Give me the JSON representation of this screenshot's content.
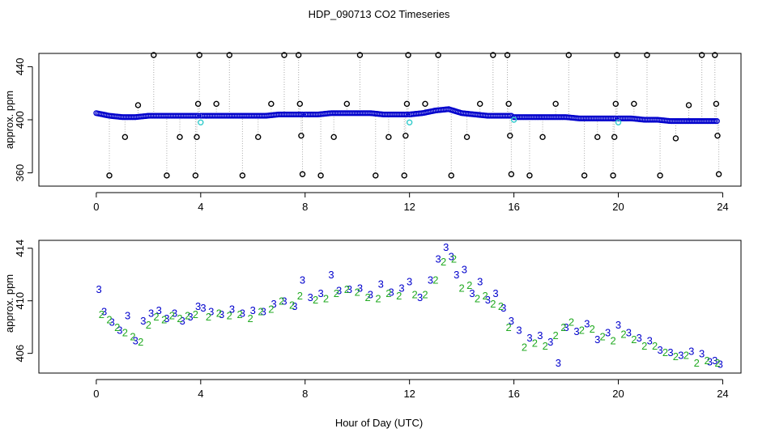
{
  "title": "HDP_090713  CO2 Timeseries",
  "xlabel": "Hour of Day (UTC)",
  "chart_data": [
    {
      "type": "scatter",
      "ylabel": "approx. ppm",
      "xlim": [
        -2.2,
        24.7
      ],
      "ylim": [
        350,
        450
      ],
      "xticks": [
        "0",
        "4",
        "8",
        "12",
        "16",
        "20",
        "24"
      ],
      "yticks": [
        "360",
        "400",
        "440"
      ],
      "baseline": {
        "name": "main",
        "color": "#0000cc",
        "segments": [
          {
            "x": [
              0.0,
              0.5,
              1.0,
              1.5,
              2.0,
              2.5,
              3.0,
              3.5,
              3.9
            ],
            "y": [
              405,
              403,
              402,
              402,
              403,
              403,
              403,
              403,
              403
            ]
          },
          {
            "x": [
              4.0,
              4.5,
              5.0,
              5.5,
              6.0,
              6.5,
              7.0,
              7.5,
              7.9
            ],
            "y": [
              403,
              403,
              403,
              403,
              403,
              403,
              404,
              404,
              404
            ]
          },
          {
            "x": [
              8.0,
              8.5,
              9.0,
              9.5,
              10.0,
              10.5,
              11.0,
              11.5,
              11.9
            ],
            "y": [
              404,
              404,
              405,
              405,
              405,
              405,
              404,
              404,
              404
            ]
          },
          {
            "x": [
              12.0,
              12.5,
              13.0,
              13.5,
              14.0,
              14.5,
              15.0,
              15.5,
              15.9
            ],
            "y": [
              404,
              405,
              407,
              408,
              405,
              404,
              403,
              403,
              403
            ]
          },
          {
            "x": [
              16.0,
              16.5,
              17.0,
              17.5,
              18.0,
              18.5,
              19.0,
              19.5,
              19.9
            ],
            "y": [
              402,
              402,
              402,
              402,
              402,
              401,
              401,
              401,
              401
            ]
          },
          {
            "x": [
              20.0,
              20.5,
              21.0,
              21.5,
              22.0,
              22.5,
              23.0,
              23.5,
              23.8
            ],
            "y": [
              401,
              401,
              400,
              400,
              399,
              399,
              399,
              399,
              399
            ]
          }
        ]
      },
      "cal_points": {
        "name": "calibration",
        "color": "#33cccc",
        "x": [
          4.0,
          12.0,
          16.0,
          20.0
        ],
        "y": [
          398,
          398,
          400,
          398
        ]
      },
      "spikes": {
        "color": "#000000",
        "points": [
          {
            "x": 0.5,
            "y": 358
          },
          {
            "x": 1.1,
            "y": 387
          },
          {
            "x": 1.6,
            "y": 411
          },
          {
            "x": 2.2,
            "y": 463
          },
          {
            "x": 2.7,
            "y": 358
          },
          {
            "x": 3.2,
            "y": 387
          },
          {
            "x": 3.8,
            "y": 358
          },
          {
            "x": 3.85,
            "y": 387
          },
          {
            "x": 3.9,
            "y": 412
          },
          {
            "x": 3.95,
            "y": 464
          },
          {
            "x": 4.6,
            "y": 412
          },
          {
            "x": 5.1,
            "y": 463
          },
          {
            "x": 5.6,
            "y": 358
          },
          {
            "x": 6.2,
            "y": 387
          },
          {
            "x": 6.7,
            "y": 412
          },
          {
            "x": 7.2,
            "y": 463
          },
          {
            "x": 7.75,
            "y": 463
          },
          {
            "x": 7.8,
            "y": 412
          },
          {
            "x": 7.85,
            "y": 388
          },
          {
            "x": 7.9,
            "y": 359
          },
          {
            "x": 8.6,
            "y": 358
          },
          {
            "x": 9.1,
            "y": 387
          },
          {
            "x": 9.6,
            "y": 412
          },
          {
            "x": 10.1,
            "y": 463
          },
          {
            "x": 10.7,
            "y": 358
          },
          {
            "x": 11.2,
            "y": 387
          },
          {
            "x": 11.8,
            "y": 358
          },
          {
            "x": 11.85,
            "y": 388
          },
          {
            "x": 11.9,
            "y": 412
          },
          {
            "x": 11.95,
            "y": 464
          },
          {
            "x": 12.6,
            "y": 412
          },
          {
            "x": 13.1,
            "y": 463
          },
          {
            "x": 13.6,
            "y": 358
          },
          {
            "x": 14.2,
            "y": 387
          },
          {
            "x": 14.7,
            "y": 412
          },
          {
            "x": 15.2,
            "y": 463
          },
          {
            "x": 15.75,
            "y": 463
          },
          {
            "x": 15.8,
            "y": 412
          },
          {
            "x": 15.85,
            "y": 388
          },
          {
            "x": 15.9,
            "y": 359
          },
          {
            "x": 16.6,
            "y": 358
          },
          {
            "x": 17.1,
            "y": 387
          },
          {
            "x": 17.6,
            "y": 412
          },
          {
            "x": 18.1,
            "y": 463
          },
          {
            "x": 18.7,
            "y": 358
          },
          {
            "x": 19.2,
            "y": 387
          },
          {
            "x": 19.8,
            "y": 358
          },
          {
            "x": 19.85,
            "y": 387
          },
          {
            "x": 19.9,
            "y": 412
          },
          {
            "x": 19.95,
            "y": 464
          },
          {
            "x": 20.6,
            "y": 412
          },
          {
            "x": 21.1,
            "y": 463
          },
          {
            "x": 21.6,
            "y": 358
          },
          {
            "x": 22.2,
            "y": 386
          },
          {
            "x": 22.7,
            "y": 411
          },
          {
            "x": 23.2,
            "y": 463
          },
          {
            "x": 23.7,
            "y": 462
          },
          {
            "x": 23.75,
            "y": 412
          },
          {
            "x": 23.8,
            "y": 388
          },
          {
            "x": 23.85,
            "y": 359
          }
        ]
      }
    },
    {
      "type": "scatter",
      "ylabel": "approx. ppm",
      "xlim": [
        -2.2,
        24.7
      ],
      "ylim": [
        404.5,
        414.6
      ],
      "xticks": [
        "0",
        "4",
        "8",
        "12",
        "16",
        "20",
        "24"
      ],
      "yticks": [
        "406",
        "410",
        "414"
      ],
      "series": [
        {
          "name": "3",
          "color": "#0000cc",
          "x": [
            0.1,
            0.3,
            0.6,
            0.9,
            1.2,
            1.5,
            1.8,
            2.1,
            2.4,
            2.7,
            3.0,
            3.3,
            3.6,
            3.9,
            4.1,
            4.4,
            4.8,
            5.2,
            5.6,
            6.0,
            6.4,
            6.8,
            7.2,
            7.6,
            7.9,
            8.2,
            8.6,
            9.0,
            9.3,
            9.7,
            10.1,
            10.5,
            10.9,
            11.3,
            11.7,
            12.0,
            12.4,
            12.8,
            13.1,
            13.4,
            13.6,
            13.8,
            14.1,
            14.4,
            14.7,
            15.0,
            15.3,
            15.6,
            15.9,
            16.2,
            16.6,
            17.0,
            17.4,
            17.7,
            18.0,
            18.4,
            18.8,
            19.2,
            19.6,
            20.0,
            20.4,
            20.8,
            21.2,
            21.6,
            22.0,
            22.4,
            22.8,
            23.2,
            23.5,
            23.7,
            23.9
          ],
          "y": [
            410.9,
            409.2,
            408.4,
            407.8,
            408.9,
            407.0,
            408.5,
            409.1,
            409.3,
            408.7,
            409.1,
            408.5,
            408.8,
            409.6,
            409.5,
            409.2,
            409.0,
            409.4,
            409.1,
            409.3,
            409.2,
            409.8,
            410.0,
            409.6,
            411.6,
            410.3,
            410.6,
            412.0,
            410.8,
            410.9,
            411.0,
            410.5,
            411.3,
            410.7,
            411.0,
            411.5,
            410.3,
            411.6,
            413.2,
            414.1,
            413.4,
            412.0,
            412.4,
            410.6,
            411.5,
            410.1,
            410.6,
            409.5,
            408.5,
            407.8,
            407.2,
            407.4,
            406.9,
            405.3,
            408.0,
            407.7,
            408.3,
            407.1,
            407.6,
            408.2,
            407.6,
            407.2,
            407.0,
            406.3,
            406.1,
            405.9,
            406.2,
            406.0,
            405.4,
            405.5,
            405.2
          ]
        },
        {
          "name": "2",
          "color": "#22aa22",
          "x": [
            0.2,
            0.5,
            0.8,
            1.1,
            1.4,
            1.7,
            2.0,
            2.3,
            2.6,
            2.9,
            3.2,
            3.5,
            3.8,
            4.3,
            4.7,
            5.1,
            5.5,
            5.9,
            6.3,
            6.7,
            7.1,
            7.5,
            7.8,
            8.4,
            8.8,
            9.2,
            9.6,
            10.0,
            10.4,
            10.8,
            11.2,
            11.6,
            12.2,
            12.6,
            13.0,
            13.3,
            13.7,
            14.0,
            14.3,
            14.6,
            14.9,
            15.2,
            15.5,
            15.8,
            16.4,
            16.8,
            17.2,
            17.6,
            17.9,
            18.2,
            18.6,
            19.0,
            19.4,
            19.8,
            20.2,
            20.6,
            21.0,
            21.4,
            21.8,
            22.2,
            22.6,
            23.0,
            23.4,
            23.8
          ],
          "y": [
            409.0,
            408.6,
            408.0,
            407.6,
            407.3,
            406.9,
            408.2,
            408.8,
            408.6,
            408.9,
            408.7,
            408.9,
            409.0,
            408.8,
            409.1,
            408.9,
            409.0,
            408.7,
            409.2,
            409.4,
            410.0,
            409.7,
            410.4,
            410.1,
            410.2,
            410.6,
            410.9,
            410.7,
            410.3,
            410.2,
            410.6,
            410.4,
            410.5,
            410.5,
            411.6,
            413.0,
            413.2,
            411.0,
            411.2,
            410.2,
            410.4,
            409.8,
            409.6,
            408.0,
            406.5,
            406.8,
            406.6,
            407.4,
            408.0,
            408.4,
            407.8,
            407.9,
            407.3,
            407.0,
            407.5,
            407.1,
            406.6,
            406.6,
            406.1,
            405.8,
            405.9,
            405.3,
            405.5,
            405.3
          ]
        }
      ]
    }
  ]
}
